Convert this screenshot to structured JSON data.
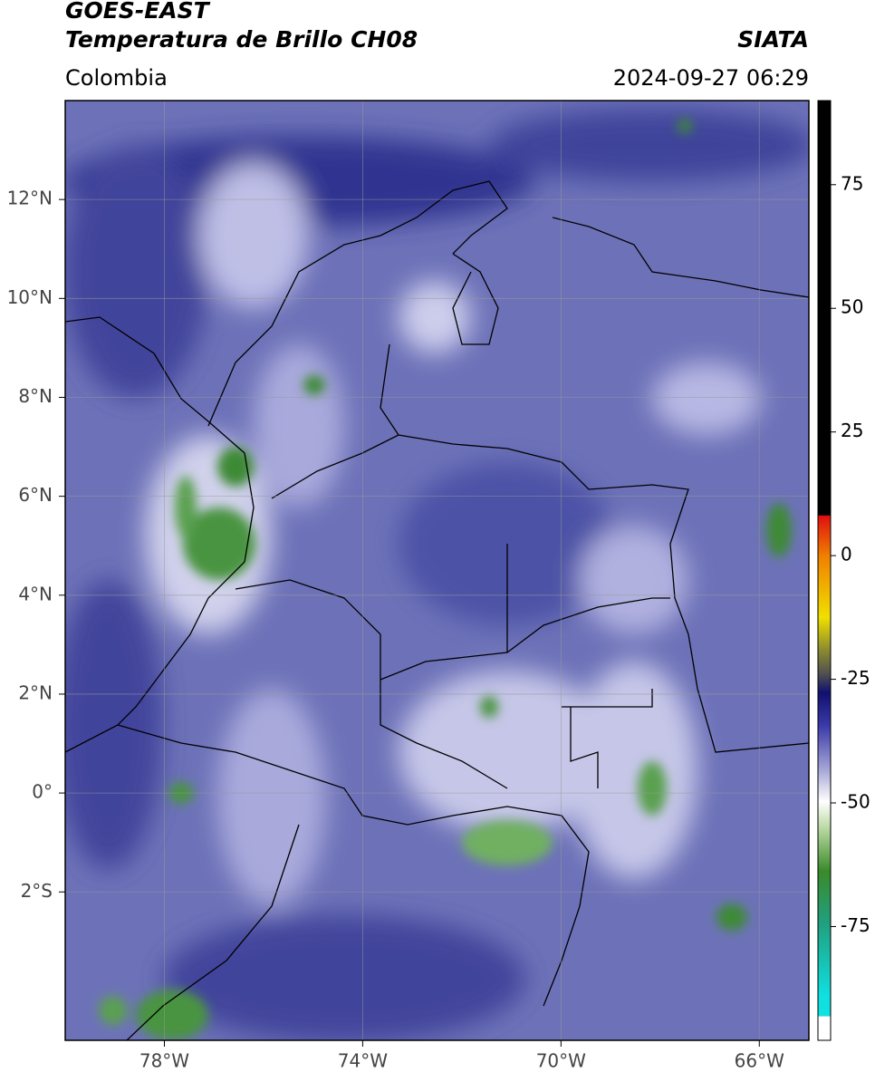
{
  "header": {
    "title": "GOES-EAST",
    "subtitle": "Temperatura de Brillo CH08",
    "region": "Colombia",
    "source": "SIATA",
    "timestamp": "2024-09-27 06:29"
  },
  "map": {
    "xlim": [
      -80,
      -65
    ],
    "ylim": [
      -5,
      14
    ],
    "xticks": [
      {
        "value": -78,
        "label": "78°W"
      },
      {
        "value": -74,
        "label": "74°W"
      },
      {
        "value": -70,
        "label": "70°W"
      },
      {
        "value": -66,
        "label": "66°W"
      }
    ],
    "yticks": [
      {
        "value": 12,
        "label": "12°N"
      },
      {
        "value": 10,
        "label": "10°N"
      },
      {
        "value": 8,
        "label": "8°N"
      },
      {
        "value": 6,
        "label": "6°N"
      },
      {
        "value": 4,
        "label": "4°N"
      },
      {
        "value": 2,
        "label": "2°N"
      },
      {
        "value": 0,
        "label": "0°"
      },
      {
        "value": -2,
        "label": "2°S"
      }
    ],
    "grid": true
  },
  "colorbar": {
    "ylim": [
      -98,
      92
    ],
    "yticks": [
      -75,
      -50,
      -25,
      0,
      25,
      50,
      75
    ]
  }
}
